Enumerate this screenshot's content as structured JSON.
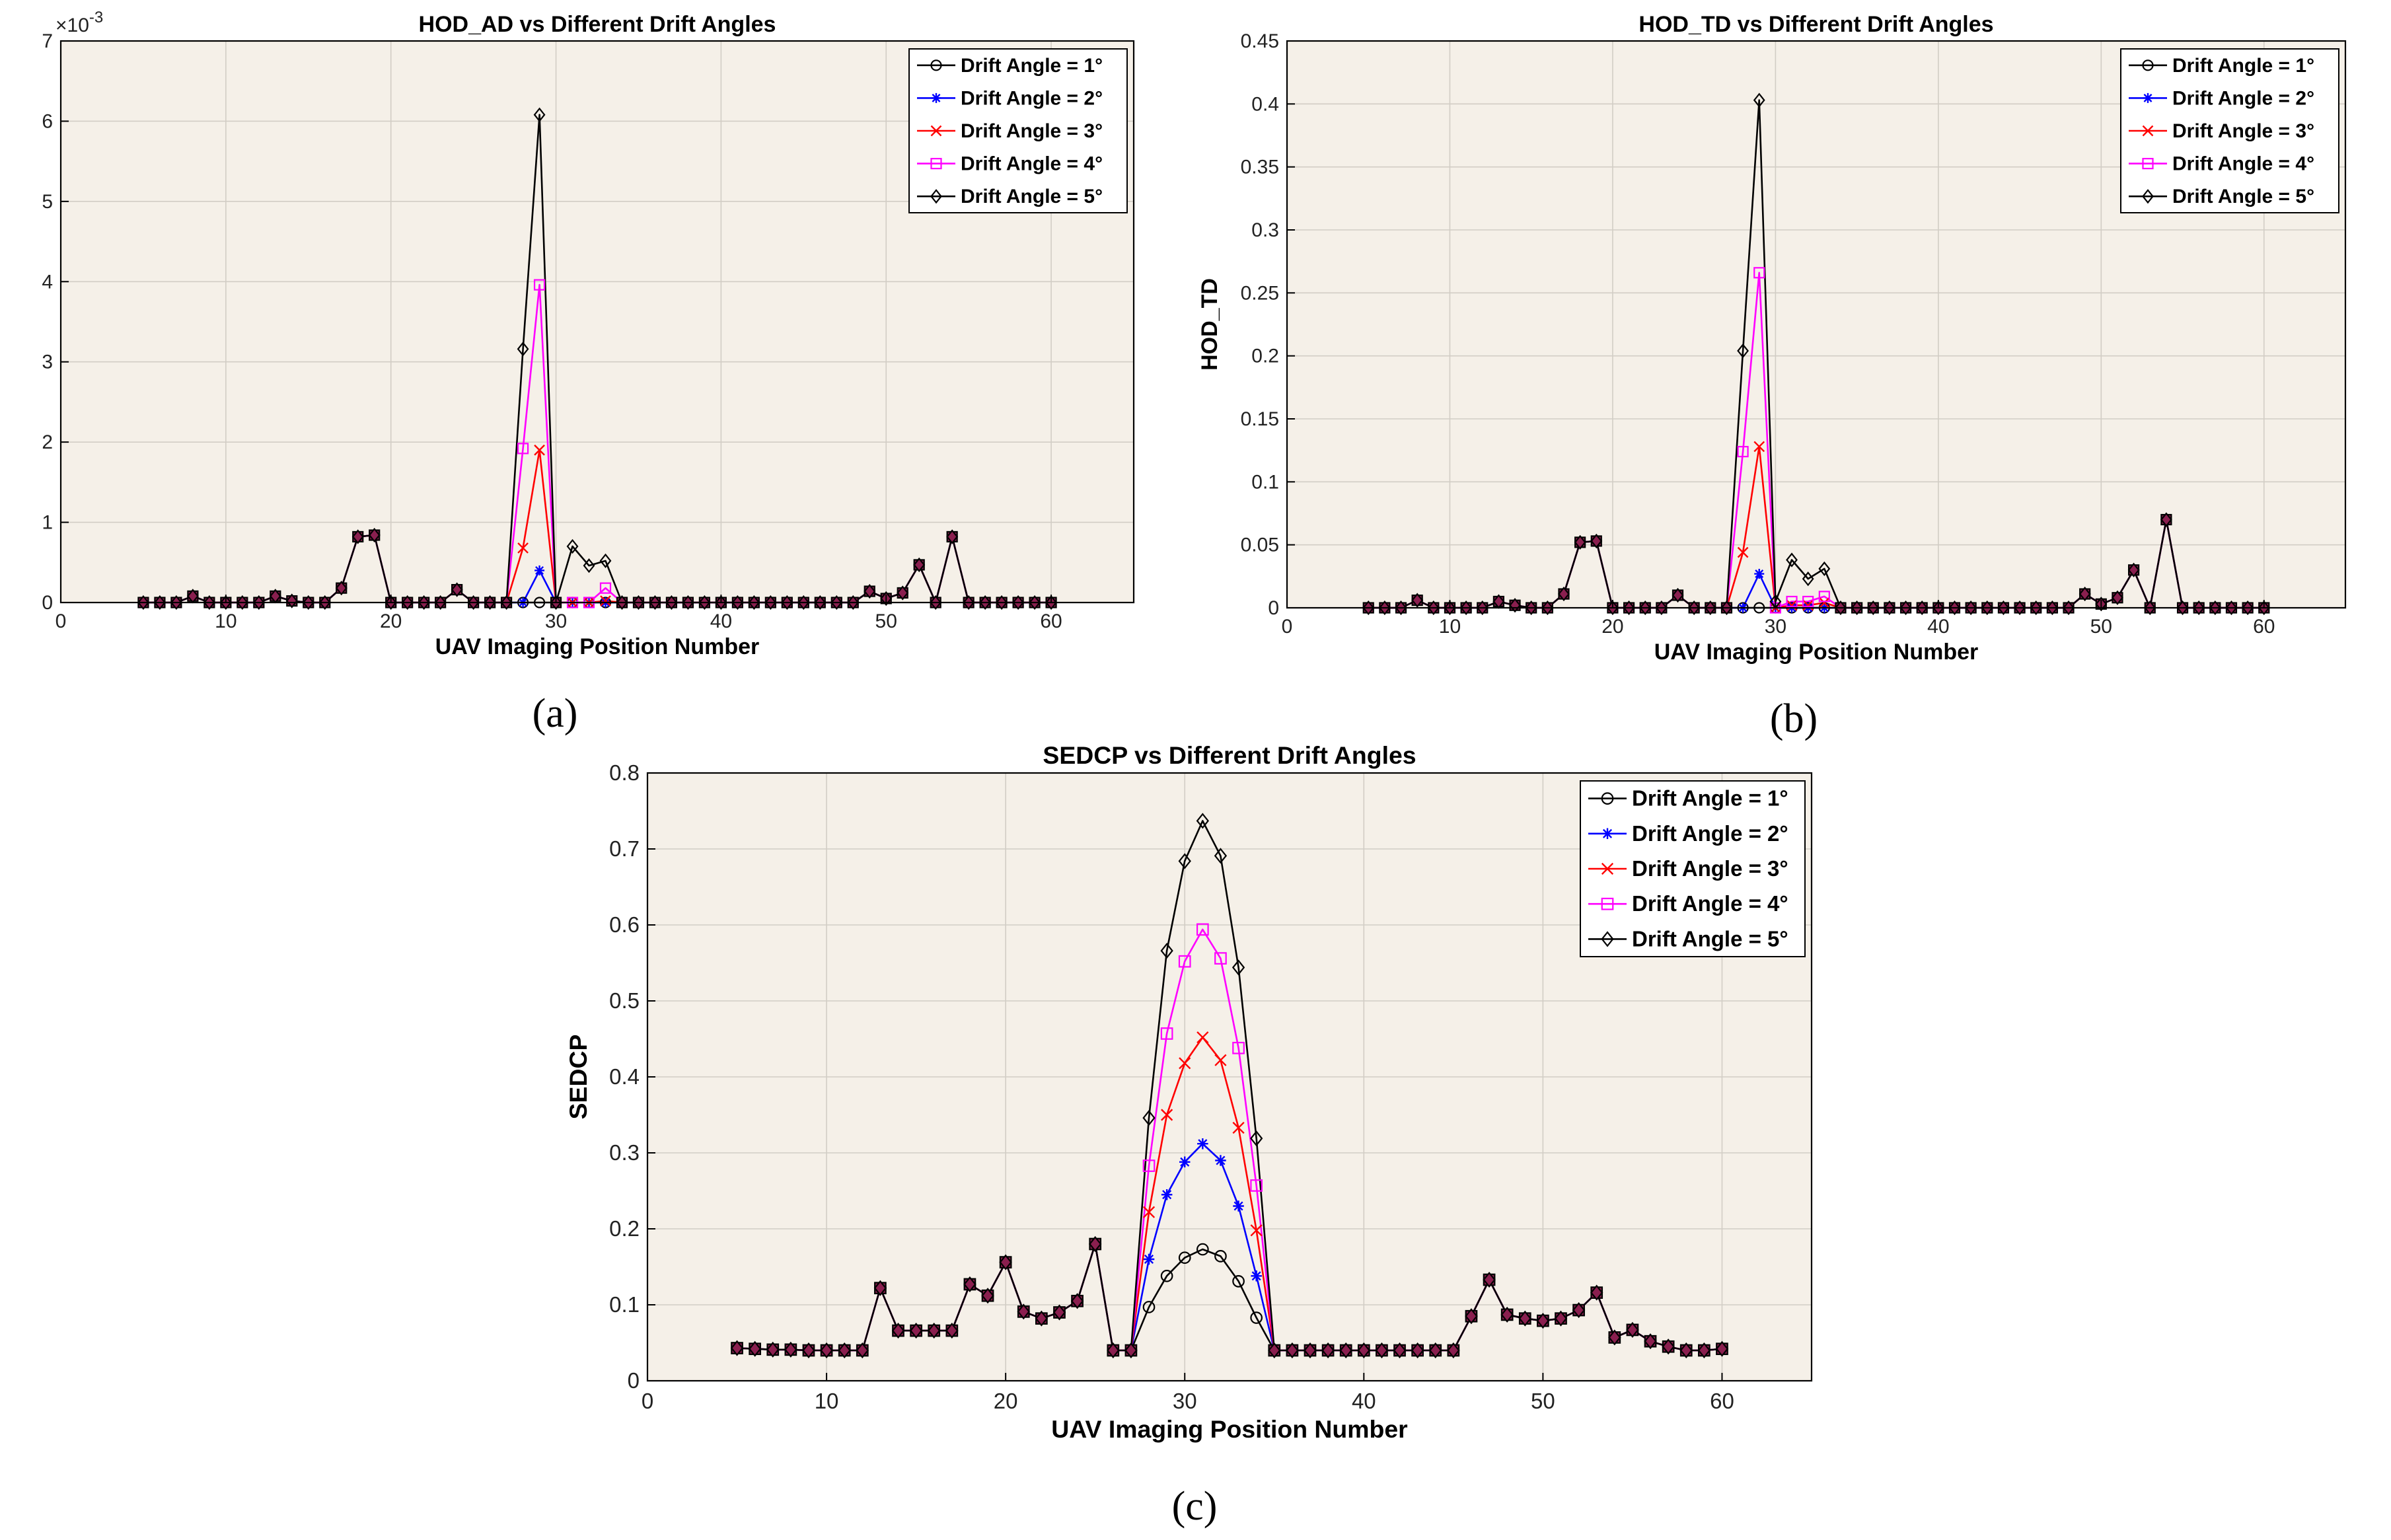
{
  "colors": {
    "plot_background": "#f5f0e8",
    "grid": "#d2cdc5",
    "series": [
      "#000000",
      "#0000ff",
      "#ff0000",
      "#ff00ff",
      "#000000"
    ],
    "marker_fill_common": "#8a1f4f"
  },
  "legend_labels": [
    "Drift Angle = 1°",
    "Drift Angle = 2°",
    "Drift Angle = 3°",
    "Drift Angle = 4°",
    "Drift Angle = 5°"
  ],
  "markers": [
    "circle",
    "asterisk",
    "x",
    "square",
    "diamond"
  ],
  "chart_data": [
    {
      "id": "a",
      "type": "line",
      "panel_label": "(a)",
      "title": "HOD_AD vs Different Drift Angles",
      "xlabel": "UAV Imaging Position Number",
      "ylabel": "HOD_AD",
      "y_exponent_label": "×10",
      "y_exponent": "-3",
      "xlim": [
        0,
        65
      ],
      "ylim": [
        0,
        7
      ],
      "xticks": [
        0,
        10,
        20,
        30,
        40,
        50,
        60
      ],
      "yticks": [
        0,
        1,
        2,
        3,
        4,
        5,
        6,
        7
      ],
      "grid": true,
      "legend_position": "top-right",
      "x": [
        5,
        6,
        7,
        8,
        9,
        10,
        11,
        12,
        13,
        14,
        15,
        16,
        17,
        18,
        19,
        20,
        21,
        22,
        23,
        24,
        25,
        26,
        27,
        28,
        29,
        30,
        31,
        32,
        33,
        34,
        35,
        36,
        37,
        38,
        39,
        40,
        41,
        42,
        43,
        44,
        45,
        46,
        47,
        48,
        49,
        50,
        51,
        52,
        53,
        54,
        55,
        56,
        57,
        58,
        59,
        60
      ],
      "series": [
        {
          "name": "Drift Angle = 1°",
          "values": [
            0,
            0,
            0,
            0.08,
            0,
            0,
            0,
            0,
            0.08,
            0.02,
            0,
            0,
            0.18,
            0.82,
            0.84,
            0,
            0,
            0,
            0,
            0.16,
            0,
            0,
            0,
            0,
            0,
            0,
            0,
            0,
            0,
            0,
            0,
            0,
            0,
            0,
            0,
            0,
            0,
            0,
            0,
            0,
            0,
            0,
            0,
            0,
            0.14,
            0.05,
            0.12,
            0.47,
            0,
            0.82,
            0,
            0,
            0,
            0,
            0,
            0
          ]
        },
        {
          "name": "Drift Angle = 2°",
          "values": [
            0,
            0,
            0,
            0.08,
            0,
            0,
            0,
            0,
            0.08,
            0.02,
            0,
            0,
            0.18,
            0.82,
            0.84,
            0,
            0,
            0,
            0,
            0.16,
            0,
            0,
            0,
            0,
            0.4,
            0,
            0,
            0,
            0,
            0,
            0,
            0,
            0,
            0,
            0,
            0,
            0,
            0,
            0,
            0,
            0,
            0,
            0,
            0,
            0.14,
            0.05,
            0.12,
            0.47,
            0,
            0.82,
            0,
            0,
            0,
            0,
            0,
            0
          ]
        },
        {
          "name": "Drift Angle = 3°",
          "values": [
            0,
            0,
            0,
            0.08,
            0,
            0,
            0,
            0,
            0.08,
            0.02,
            0,
            0,
            0.18,
            0.82,
            0.84,
            0,
            0,
            0,
            0,
            0.16,
            0,
            0,
            0,
            0.68,
            1.9,
            0,
            0,
            0,
            0.02,
            0,
            0,
            0,
            0,
            0,
            0,
            0,
            0,
            0,
            0,
            0,
            0,
            0,
            0,
            0,
            0.14,
            0.05,
            0.12,
            0.47,
            0,
            0.82,
            0,
            0,
            0,
            0,
            0,
            0
          ]
        },
        {
          "name": "Drift Angle = 4°",
          "values": [
            0,
            0,
            0,
            0.08,
            0,
            0,
            0,
            0,
            0.08,
            0.02,
            0,
            0,
            0.18,
            0.82,
            0.84,
            0,
            0,
            0,
            0,
            0.16,
            0,
            0,
            0,
            1.92,
            3.96,
            0,
            0,
            0,
            0.18,
            0,
            0,
            0,
            0,
            0,
            0,
            0,
            0,
            0,
            0,
            0,
            0,
            0,
            0,
            0,
            0.14,
            0.05,
            0.12,
            0.47,
            0,
            0.82,
            0,
            0,
            0,
            0,
            0,
            0
          ]
        },
        {
          "name": "Drift Angle = 5°",
          "values": [
            0,
            0,
            0,
            0.08,
            0,
            0,
            0,
            0,
            0.08,
            0.02,
            0,
            0,
            0.18,
            0.82,
            0.84,
            0,
            0,
            0,
            0,
            0.16,
            0,
            0,
            0,
            3.16,
            6.08,
            0,
            0.7,
            0.46,
            0.52,
            0,
            0,
            0,
            0,
            0,
            0,
            0,
            0,
            0,
            0,
            0,
            0,
            0,
            0,
            0,
            0.14,
            0.05,
            0.12,
            0.47,
            0,
            0.82,
            0,
            0,
            0,
            0,
            0,
            0
          ]
        }
      ]
    },
    {
      "id": "b",
      "type": "line",
      "panel_label": "(b)",
      "title": "HOD_TD vs Different Drift Angles",
      "xlabel": "UAV Imaging Position Number",
      "ylabel": "HOD_TD",
      "xlim": [
        0,
        65
      ],
      "ylim": [
        0,
        0.45
      ],
      "xticks": [
        0,
        10,
        20,
        30,
        40,
        50,
        60
      ],
      "yticks": [
        0,
        0.05,
        0.1,
        0.15,
        0.2,
        0.25,
        0.3,
        0.35,
        0.4,
        0.45
      ],
      "grid": true,
      "legend_position": "top-right",
      "x": [
        5,
        6,
        7,
        8,
        9,
        10,
        11,
        12,
        13,
        14,
        15,
        16,
        17,
        18,
        19,
        20,
        21,
        22,
        23,
        24,
        25,
        26,
        27,
        28,
        29,
        30,
        31,
        32,
        33,
        34,
        35,
        36,
        37,
        38,
        39,
        40,
        41,
        42,
        43,
        44,
        45,
        46,
        47,
        48,
        49,
        50,
        51,
        52,
        53,
        54,
        55,
        56,
        57,
        58,
        59,
        60
      ],
      "series": [
        {
          "name": "Drift Angle = 1°",
          "values": [
            0,
            0,
            0,
            0.006,
            0,
            0,
            0,
            0,
            0.005,
            0.002,
            0,
            0,
            0.011,
            0.052,
            0.053,
            0,
            0,
            0,
            0,
            0.01,
            0,
            0,
            0,
            0,
            0,
            0,
            0,
            0,
            0,
            0,
            0,
            0,
            0,
            0,
            0,
            0,
            0,
            0,
            0,
            0,
            0,
            0,
            0,
            0,
            0.011,
            0.003,
            0.008,
            0.03,
            0,
            0.07,
            0,
            0,
            0,
            0,
            0,
            0
          ]
        },
        {
          "name": "Drift Angle = 2°",
          "values": [
            0,
            0,
            0,
            0.006,
            0,
            0,
            0,
            0,
            0.005,
            0.002,
            0,
            0,
            0.011,
            0.052,
            0.053,
            0,
            0,
            0,
            0,
            0.01,
            0,
            0,
            0,
            0,
            0.027,
            0,
            0,
            0,
            0,
            0,
            0,
            0,
            0,
            0,
            0,
            0,
            0,
            0,
            0,
            0,
            0,
            0,
            0,
            0,
            0.011,
            0.003,
            0.008,
            0.03,
            0,
            0.07,
            0,
            0,
            0,
            0,
            0,
            0
          ]
        },
        {
          "name": "Drift Angle = 3°",
          "values": [
            0,
            0,
            0,
            0.006,
            0,
            0,
            0,
            0,
            0.005,
            0.002,
            0,
            0,
            0.011,
            0.052,
            0.053,
            0,
            0,
            0,
            0,
            0.01,
            0,
            0,
            0,
            0.044,
            0.128,
            0,
            0.002,
            0.002,
            0.004,
            0,
            0,
            0,
            0,
            0,
            0,
            0,
            0,
            0,
            0,
            0,
            0,
            0,
            0,
            0,
            0.011,
            0.003,
            0.008,
            0.03,
            0,
            0.07,
            0,
            0,
            0,
            0,
            0,
            0
          ]
        },
        {
          "name": "Drift Angle = 4°",
          "values": [
            0,
            0,
            0,
            0.006,
            0,
            0,
            0,
            0,
            0.005,
            0.002,
            0,
            0,
            0.011,
            0.052,
            0.053,
            0,
            0,
            0,
            0,
            0.01,
            0,
            0,
            0,
            0.124,
            0.266,
            0,
            0.005,
            0.005,
            0.009,
            0,
            0,
            0,
            0,
            0,
            0,
            0,
            0,
            0,
            0,
            0,
            0,
            0,
            0,
            0,
            0.011,
            0.003,
            0.008,
            0.03,
            0,
            0.07,
            0,
            0,
            0,
            0,
            0,
            0
          ]
        },
        {
          "name": "Drift Angle = 5°",
          "values": [
            0,
            0,
            0,
            0.006,
            0,
            0,
            0,
            0,
            0.005,
            0.002,
            0,
            0,
            0.011,
            0.052,
            0.053,
            0,
            0,
            0,
            0,
            0.01,
            0,
            0,
            0,
            0.204,
            0.403,
            0.005,
            0.038,
            0.023,
            0.031,
            0,
            0,
            0,
            0,
            0,
            0,
            0,
            0,
            0,
            0,
            0,
            0,
            0,
            0,
            0,
            0.011,
            0.003,
            0.008,
            0.03,
            0,
            0.07,
            0,
            0,
            0,
            0,
            0,
            0
          ]
        }
      ]
    },
    {
      "id": "c",
      "type": "line",
      "panel_label": "(c)",
      "title": "SEDCP vs Different Drift Angles",
      "xlabel": "UAV Imaging Position Number",
      "ylabel": "SEDCP",
      "xlim": [
        0,
        65
      ],
      "ylim": [
        0,
        0.8
      ],
      "xticks": [
        0,
        10,
        20,
        30,
        40,
        50,
        60
      ],
      "yticks": [
        0,
        0.1,
        0.2,
        0.3,
        0.4,
        0.5,
        0.6,
        0.7,
        0.8
      ],
      "grid": true,
      "legend_position": "top-right",
      "x": [
        5,
        6,
        7,
        8,
        9,
        10,
        11,
        12,
        13,
        14,
        15,
        16,
        17,
        18,
        19,
        20,
        21,
        22,
        23,
        24,
        25,
        26,
        27,
        28,
        29,
        30,
        31,
        32,
        33,
        34,
        35,
        36,
        37,
        38,
        39,
        40,
        41,
        42,
        43,
        44,
        45,
        46,
        47,
        48,
        49,
        50,
        51,
        52,
        53,
        54,
        55,
        56,
        57,
        58,
        59,
        60
      ],
      "series": [
        {
          "name": "Drift Angle = 1°",
          "values": [
            0.043,
            0.042,
            0.041,
            0.041,
            0.04,
            0.04,
            0.04,
            0.04,
            0.122,
            0.066,
            0.066,
            0.066,
            0.066,
            0.127,
            0.112,
            0.156,
            0.091,
            0.082,
            0.09,
            0.105,
            0.18,
            0.04,
            0.04,
            0.097,
            0.138,
            0.162,
            0.173,
            0.164,
            0.131,
            0.083,
            0.04,
            0.04,
            0.04,
            0.04,
            0.04,
            0.04,
            0.04,
            0.04,
            0.04,
            0.04,
            0.04,
            0.085,
            0.133,
            0.087,
            0.082,
            0.079,
            0.082,
            0.093,
            0.116,
            0.057,
            0.067,
            0.052,
            0.045,
            0.04,
            0.04,
            0.042
          ]
        },
        {
          "name": "Drift Angle = 2°",
          "values": [
            0.043,
            0.042,
            0.041,
            0.041,
            0.04,
            0.04,
            0.04,
            0.04,
            0.122,
            0.066,
            0.066,
            0.066,
            0.066,
            0.127,
            0.112,
            0.156,
            0.091,
            0.082,
            0.09,
            0.105,
            0.18,
            0.04,
            0.04,
            0.16,
            0.245,
            0.288,
            0.312,
            0.29,
            0.23,
            0.138,
            0.04,
            0.04,
            0.04,
            0.04,
            0.04,
            0.04,
            0.04,
            0.04,
            0.04,
            0.04,
            0.04,
            0.085,
            0.133,
            0.087,
            0.082,
            0.079,
            0.082,
            0.093,
            0.116,
            0.057,
            0.067,
            0.052,
            0.045,
            0.04,
            0.04,
            0.042
          ]
        },
        {
          "name": "Drift Angle = 3°",
          "values": [
            0.043,
            0.042,
            0.041,
            0.041,
            0.04,
            0.04,
            0.04,
            0.04,
            0.122,
            0.066,
            0.066,
            0.066,
            0.066,
            0.127,
            0.112,
            0.156,
            0.091,
            0.082,
            0.09,
            0.105,
            0.18,
            0.04,
            0.04,
            0.222,
            0.35,
            0.418,
            0.452,
            0.422,
            0.333,
            0.198,
            0.04,
            0.04,
            0.04,
            0.04,
            0.04,
            0.04,
            0.04,
            0.04,
            0.04,
            0.04,
            0.04,
            0.085,
            0.133,
            0.087,
            0.082,
            0.079,
            0.082,
            0.093,
            0.116,
            0.057,
            0.067,
            0.052,
            0.045,
            0.04,
            0.04,
            0.042
          ]
        },
        {
          "name": "Drift Angle = 4°",
          "values": [
            0.043,
            0.042,
            0.041,
            0.041,
            0.04,
            0.04,
            0.04,
            0.04,
            0.122,
            0.066,
            0.066,
            0.066,
            0.066,
            0.127,
            0.112,
            0.156,
            0.091,
            0.082,
            0.09,
            0.105,
            0.18,
            0.04,
            0.04,
            0.283,
            0.457,
            0.552,
            0.594,
            0.556,
            0.438,
            0.257,
            0.04,
            0.04,
            0.04,
            0.04,
            0.04,
            0.04,
            0.04,
            0.04,
            0.04,
            0.04,
            0.04,
            0.085,
            0.133,
            0.087,
            0.082,
            0.079,
            0.082,
            0.093,
            0.116,
            0.057,
            0.067,
            0.052,
            0.045,
            0.04,
            0.04,
            0.042
          ]
        },
        {
          "name": "Drift Angle = 5°",
          "values": [
            0.043,
            0.042,
            0.041,
            0.041,
            0.04,
            0.04,
            0.04,
            0.04,
            0.122,
            0.066,
            0.066,
            0.066,
            0.066,
            0.127,
            0.112,
            0.156,
            0.091,
            0.082,
            0.09,
            0.105,
            0.18,
            0.04,
            0.04,
            0.346,
            0.566,
            0.684,
            0.737,
            0.691,
            0.544,
            0.319,
            0.04,
            0.04,
            0.04,
            0.04,
            0.04,
            0.04,
            0.04,
            0.04,
            0.04,
            0.04,
            0.04,
            0.085,
            0.133,
            0.087,
            0.082,
            0.079,
            0.082,
            0.093,
            0.116,
            0.057,
            0.067,
            0.052,
            0.045,
            0.04,
            0.04,
            0.042
          ]
        }
      ]
    }
  ]
}
